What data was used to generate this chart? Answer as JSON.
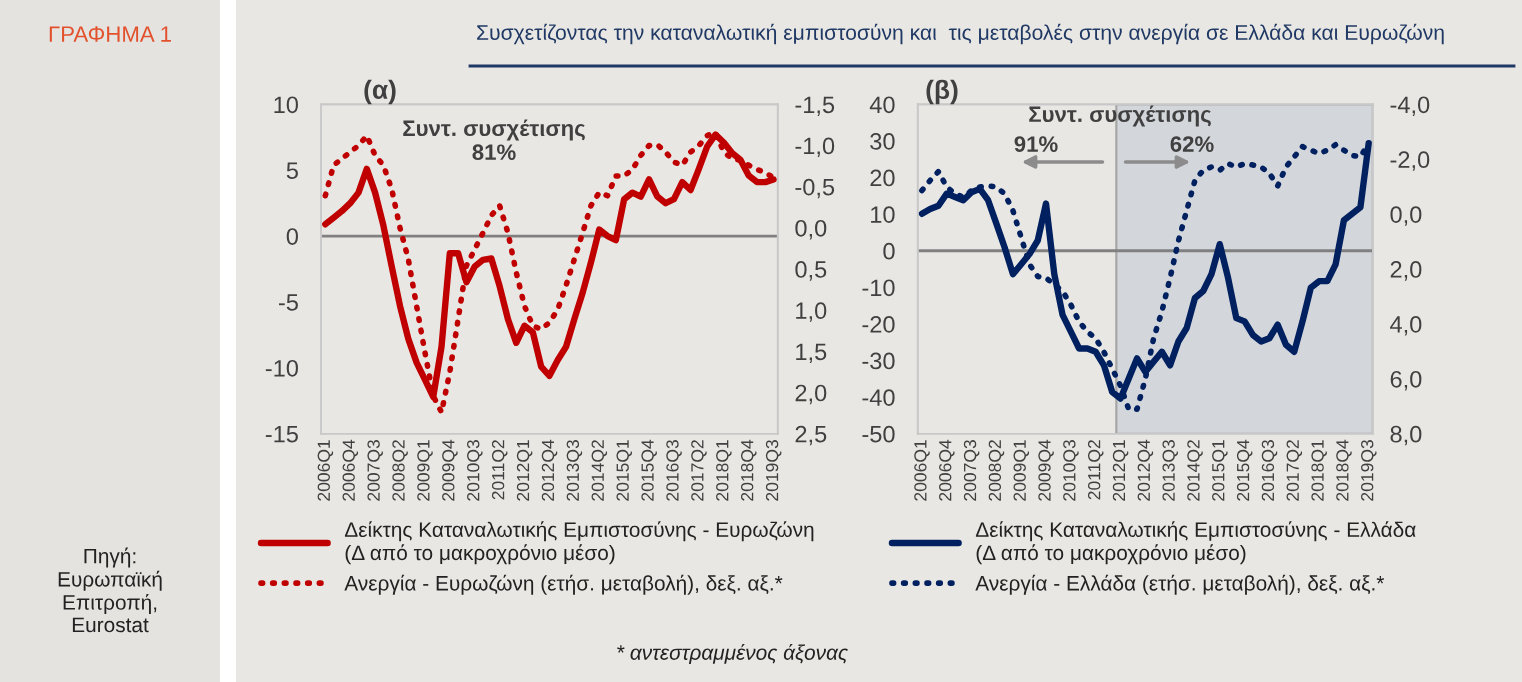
{
  "chart_data": [
    {
      "type": "line",
      "title": "Συσχετίζοντας την καταναλωτική εμπιστοσύνη και  τις μεταβολές στην ανεργία σε Ελλάδα και Ευρωζώνη",
      "categories": [
        "2006Q1",
        null,
        null,
        "2006Q4",
        null,
        null,
        "2007Q3",
        null,
        null,
        "2008Q2",
        null,
        null,
        "2009Q1",
        null,
        null,
        "2009Q4",
        null,
        null,
        "2010Q3",
        null,
        null,
        "2011Q2",
        null,
        null,
        "2012Q1",
        null,
        null,
        "2012Q4",
        null,
        null,
        "2013Q3",
        null,
        null,
        "2014Q2",
        null,
        null,
        "2015Q1",
        null,
        null,
        "2015Q4",
        null,
        null,
        "2016Q3",
        null,
        null,
        "2017Q2",
        null,
        null,
        "2018Q1",
        null,
        null,
        "2018Q4",
        null,
        null,
        "2019Q3"
      ],
      "ylim": [
        -15,
        10
      ],
      "yticks": [
        -15,
        -10,
        -5,
        0,
        5,
        10
      ],
      "y2lim": [
        2.5,
        -1.5
      ],
      "y2ticks": [
        {
          "value": -1.5,
          "label": "-1,5"
        },
        {
          "value": -1.0,
          "label": "-1,0"
        },
        {
          "value": -0.5,
          "label": "-0,5"
        },
        {
          "value": 0,
          "label": "0,0"
        },
        {
          "value": 0.5,
          "label": "0,5"
        },
        {
          "value": 1.0,
          "label": "1,0"
        },
        {
          "value": 1.5,
          "label": "1,5"
        },
        {
          "value": 2.0,
          "label": "2,0"
        },
        {
          "value": 2.5,
          "label": "2,5"
        }
      ],
      "series": [
        {
          "name": "Δείκτης Καταναλωτικής Εμπιστοσύνης - Ευρωζώνη\n(Δ από το μακροχρόνιο μέσο)",
          "color": "#c00000",
          "line_style": "solid",
          "values": [
            0.9,
            1.4,
            1.9,
            2.5,
            3.3,
            5.1,
            3.3,
            0.8,
            -2.3,
            -5.3,
            -7.8,
            -9.6,
            -10.9,
            -12.2,
            -8.4,
            -1.3,
            -1.3,
            -3.5,
            -2.3,
            -1.8,
            -1.7,
            -3.8,
            -6.3,
            -8.1,
            -6.8,
            -7.3,
            -9.9,
            -10.6,
            -9.4,
            -8.4,
            -6.3,
            -4.3,
            -2.0,
            0.5,
            0.0,
            -0.3,
            2.8,
            3.3,
            3.0,
            4.3,
            3.0,
            2.5,
            2.8,
            4.1,
            3.5,
            5.1,
            6.8,
            7.7,
            7.1,
            6.3,
            5.8,
            4.6,
            4.1,
            4.1,
            4.3
          ]
        },
        {
          "name": "Ανεργία - Ευρωζώνη (ετήσ. μεταβολή), δεξ. αξ.*",
          "color": "#c00000",
          "line_style": "dotted",
          "axis": "y2",
          "values": [
            -0.39,
            -0.76,
            -0.84,
            -0.92,
            -1.0,
            -1.12,
            -0.88,
            -0.76,
            -0.47,
            0.0,
            0.38,
            0.95,
            1.51,
            2.04,
            2.24,
            1.75,
            1.11,
            0.46,
            0.26,
            0.06,
            -0.15,
            -0.27,
            0.06,
            0.54,
            0.95,
            1.19,
            1.23,
            1.15,
            0.99,
            0.7,
            0.38,
            0.06,
            -0.27,
            -0.43,
            -0.39,
            -0.63,
            -0.63,
            -0.71,
            -0.88,
            -1.0,
            -1.01,
            -0.92,
            -0.8,
            -0.76,
            -0.92,
            -1.0,
            -1.12,
            -1.16,
            -0.92,
            -0.84,
            -0.82,
            -0.76,
            -0.71,
            -0.67,
            -0.61
          ]
        }
      ],
      "ref_lines": [
        {
          "axis": "y",
          "value": 0,
          "color": "#808080"
        }
      ],
      "legend": "bottom",
      "annotations": [
        "ΓΡΑΦΗΜΑ 1",
        "(α)",
        "Συντ. συσχέτισης\n81%",
        "Πηγή:\nΕυρωπαϊκή\nΕπιτροπή,\nEurostat"
      ]
    },
    {
      "type": "line",
      "categories": [
        "2006Q1",
        null,
        null,
        "2006Q4",
        null,
        null,
        "2007Q3",
        null,
        null,
        "2008Q2",
        null,
        null,
        "2009Q1",
        null,
        null,
        "2009Q4",
        null,
        null,
        "2010Q3",
        null,
        null,
        "2011Q2",
        null,
        null,
        "2012Q1",
        null,
        null,
        "2012Q4",
        null,
        null,
        "2013Q3",
        null,
        null,
        "2014Q2",
        null,
        null,
        "2015Q1",
        null,
        null,
        "2015Q4",
        null,
        null,
        "2016Q3",
        null,
        null,
        "2017Q2",
        null,
        null,
        "2018Q1",
        null,
        null,
        "2018Q4",
        null,
        null,
        "2019Q3"
      ],
      "ylim": [
        -50,
        40
      ],
      "yticks": [
        -50,
        -40,
        -30,
        -20,
        -10,
        0,
        10,
        20,
        30,
        40
      ],
      "y2lim": [
        8.0,
        -4.0
      ],
      "y2ticks": [
        {
          "value": -4.0,
          "label": "-4,0"
        },
        {
          "value": -2.0,
          "label": "-2,0"
        },
        {
          "value": 0,
          "label": "0,0"
        },
        {
          "value": 2.0,
          "label": "2,0"
        },
        {
          "value": 4.0,
          "label": "4,0"
        },
        {
          "value": 6.0,
          "label": "6,0"
        },
        {
          "value": 8.0,
          "label": "8,0"
        }
      ],
      "series": [
        {
          "name": "Δείκτης Καταναλωτικής Εμπιστοσύνης - Ελλάδα\n(Δ από το μακροχρόνιο μέσο)",
          "color": "#002060",
          "line_style": "solid",
          "values": [
            10.1,
            11.4,
            12.3,
            15.6,
            14.7,
            13.8,
            16.0,
            16.9,
            13.8,
            7.4,
            0.9,
            -6.4,
            -3.7,
            -0.9,
            2.8,
            12.9,
            -6.4,
            -17.5,
            -22.1,
            -26.7,
            -26.7,
            -27.6,
            -31.3,
            -38.6,
            -40.4,
            -34.9,
            -29.4,
            -33.1,
            -30.3,
            -27.6,
            -31.3,
            -24.8,
            -21.1,
            -12.9,
            -11.0,
            -6.4,
            1.8,
            -7.4,
            -18.4,
            -19.3,
            -23.0,
            -24.8,
            -23.9,
            -20.2,
            -25.7,
            -27.6,
            -19.3,
            -10.1,
            -8.3,
            -8.3,
            -3.7,
            8.3,
            10.1,
            11.9,
            29.4
          ]
        },
        {
          "name": "Ανεργία - Ελλάδα (ετήσ. μεταβολή), δεξ. αξ.*",
          "color": "#002060",
          "line_style": "dotted",
          "axis": "y2",
          "values": [
            -0.86,
            -1.23,
            -1.55,
            -0.99,
            -0.74,
            -0.62,
            -0.86,
            -0.99,
            -1.03,
            -0.99,
            -0.74,
            -0.13,
            0.85,
            1.83,
            2.27,
            2.32,
            2.57,
            2.81,
            3.3,
            3.92,
            4.28,
            4.53,
            5.02,
            5.63,
            6.25,
            7.11,
            7.11,
            6.0,
            4.53,
            3.55,
            2.32,
            0.98,
            -0.13,
            -1.23,
            -1.6,
            -1.72,
            -1.6,
            -1.84,
            -1.72,
            -1.84,
            -1.79,
            -1.72,
            -1.48,
            -1.03,
            -1.72,
            -2.09,
            -2.46,
            -2.33,
            -2.21,
            -2.33,
            -2.53,
            -2.33,
            -2.14,
            -2.09,
            -2.58
          ]
        }
      ],
      "ref_lines": [
        {
          "axis": "y",
          "value": 0,
          "color": "#808080"
        }
      ],
      "bands": [
        {
          "axis": "x",
          "from": "2012Q1",
          "to": "2019Q3",
          "color": "#d3d6da"
        }
      ],
      "legend": "bottom",
      "annotations": [
        "(β)",
        "Συντ. συσχέτισης",
        "91%",
        "62%",
        "* αντεστραμμένος άξονας"
      ]
    }
  ]
}
